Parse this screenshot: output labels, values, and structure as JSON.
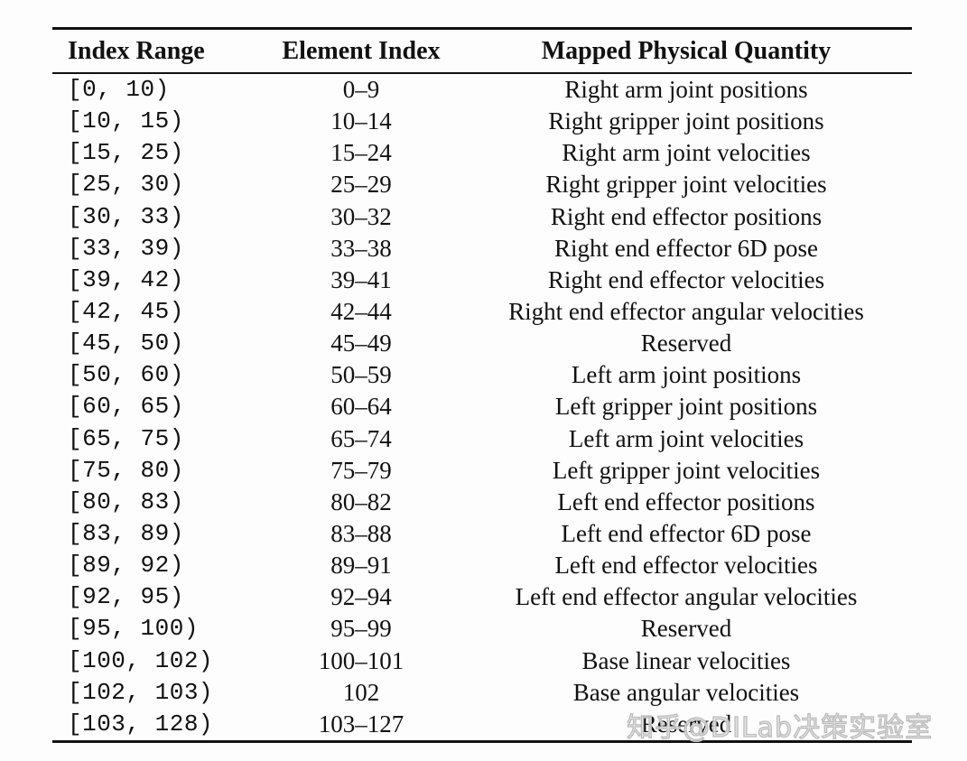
{
  "table": {
    "columns": [
      {
        "label": "Index Range"
      },
      {
        "label": "Element Index"
      },
      {
        "label": "Mapped Physical Quantity"
      }
    ],
    "rows": [
      {
        "index_range": "[0, 10)",
        "element_index": "0–9",
        "quantity": "Right arm joint positions"
      },
      {
        "index_range": "[10, 15)",
        "element_index": "10–14",
        "quantity": "Right gripper joint positions"
      },
      {
        "index_range": "[15, 25)",
        "element_index": "15–24",
        "quantity": "Right arm joint velocities"
      },
      {
        "index_range": "[25, 30)",
        "element_index": "25–29",
        "quantity": "Right gripper joint velocities"
      },
      {
        "index_range": "[30, 33)",
        "element_index": "30–32",
        "quantity": "Right end effector positions"
      },
      {
        "index_range": "[33, 39)",
        "element_index": "33–38",
        "quantity": "Right end effector 6D pose"
      },
      {
        "index_range": "[39, 42)",
        "element_index": "39–41",
        "quantity": "Right end effector velocities"
      },
      {
        "index_range": "[42, 45)",
        "element_index": "42–44",
        "quantity": "Right end effector angular velocities"
      },
      {
        "index_range": "[45, 50)",
        "element_index": "45–49",
        "quantity": "Reserved"
      },
      {
        "index_range": "[50, 60)",
        "element_index": "50–59",
        "quantity": "Left arm joint positions"
      },
      {
        "index_range": "[60, 65)",
        "element_index": "60–64",
        "quantity": "Left gripper joint positions"
      },
      {
        "index_range": "[65, 75)",
        "element_index": "65–74",
        "quantity": "Left arm joint velocities"
      },
      {
        "index_range": "[75, 80)",
        "element_index": "75–79",
        "quantity": "Left gripper joint velocities"
      },
      {
        "index_range": "[80, 83)",
        "element_index": "80–82",
        "quantity": "Left end effector positions"
      },
      {
        "index_range": "[83, 89)",
        "element_index": "83–88",
        "quantity": "Left end effector 6D pose"
      },
      {
        "index_range": "[89, 92)",
        "element_index": "89–91",
        "quantity": "Left end effector velocities"
      },
      {
        "index_range": "[92, 95)",
        "element_index": "92–94",
        "quantity": "Left end effector angular velocities"
      },
      {
        "index_range": "[95, 100)",
        "element_index": "95–99",
        "quantity": "Reserved"
      },
      {
        "index_range": "[100, 102)",
        "element_index": "100–101",
        "quantity": "Base linear velocities"
      },
      {
        "index_range": "[102, 103)",
        "element_index": "102",
        "quantity": "Base angular velocities"
      },
      {
        "index_range": "[103, 128)",
        "element_index": "103–127",
        "quantity": "Reserved"
      }
    ]
  },
  "watermark": {
    "text": "知乎@DILab决策实验室"
  },
  "colors": {
    "background": "#fdfdfd",
    "text": "#111111",
    "rule": "#111111",
    "watermark": "#bdbdbd"
  }
}
